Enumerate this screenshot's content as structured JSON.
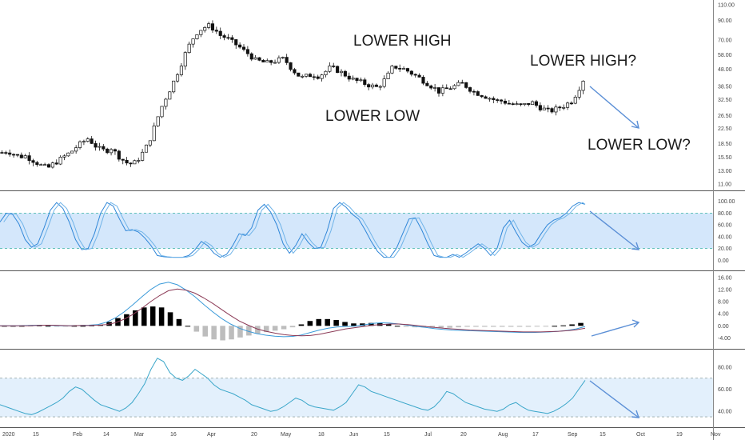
{
  "colors": {
    "accent": "#5b8fd6",
    "band": "#d4e7fb",
    "bandLine": "#3cb6a5",
    "candle": "#111111",
    "macdSignal": "#8b3a56",
    "histPos": "#000000",
    "histNeg": "#bdbdbd"
  },
  "chart_data": [
    {
      "type": "candlestick",
      "title": "",
      "yscale": "log",
      "ylim": [
        11.0,
        110.0
      ],
      "y_ticks": [
        "110.00",
        "90.00",
        "70.00",
        "58.00",
        "48.00",
        "38.50",
        "32.50",
        "26.50",
        "22.50",
        "18.50",
        "15.50",
        "13.00",
        "11.00"
      ],
      "x_ticks": [
        "2020",
        "15",
        "Feb",
        "14",
        "Mar",
        "16",
        "Apr",
        "20",
        "May",
        "18",
        "Jun",
        "15",
        "Jul",
        "20",
        "Aug",
        "17",
        "Sep",
        "15",
        "Oct",
        "19",
        "Nov"
      ],
      "close_path": [
        16.5,
        16.8,
        16.2,
        15.6,
        15.8,
        15.2,
        14.5,
        13.8,
        13.5,
        14.3,
        15.0,
        15.8,
        16.6,
        17.8,
        18.8,
        19.8,
        18.2,
        17.2,
        16.8,
        17.5,
        16.0,
        15.0,
        14.2,
        14.4,
        15.6,
        17.5,
        20.5,
        25.5,
        31.0,
        36.0,
        42.0,
        50.0,
        60.0,
        70.0,
        78.0,
        82.0,
        84.0,
        80.0,
        74.0,
        72.0,
        68.0,
        65.0,
        61.0,
        58.0,
        54.0,
        53.0,
        52.0,
        53.0,
        54.0,
        55.0,
        50.0,
        46.0,
        43.0,
        44.0,
        45.0,
        44.0,
        46.0,
        49.0,
        48.0,
        46.0,
        44.0,
        42.0,
        41.0,
        40.0,
        39.0,
        38.0,
        40.0,
        44.0,
        50.0,
        49.0,
        48.0,
        46.0,
        44.0,
        42.0,
        40.0,
        38.0,
        36.0,
        37.0,
        38.0,
        39.0,
        40.0,
        38.0,
        36.0,
        35.0,
        34.0,
        33.0,
        32.0,
        32.0,
        31.0,
        30.5,
        30.0,
        30.5,
        31.5,
        30.0,
        29.0,
        28.0,
        28.5,
        29.5,
        30.5,
        32.0,
        36.0,
        42.0
      ],
      "annotations": [
        "LOWER HIGH",
        "LOWER LOW",
        "LOWER HIGH?",
        "LOWER LOW?"
      ]
    },
    {
      "type": "line",
      "y_ticks": [
        "100.00",
        "80.00",
        "60.00",
        "40.00",
        "20.00",
        "0.00"
      ],
      "ylim": [
        -5,
        105
      ],
      "band": [
        20,
        80
      ],
      "k_values": [
        65,
        80,
        78,
        62,
        35,
        22,
        28,
        55,
        85,
        98,
        88,
        65,
        35,
        18,
        20,
        45,
        80,
        98,
        92,
        70,
        50,
        52,
        48,
        38,
        25,
        8,
        6,
        5,
        5,
        5,
        8,
        18,
        32,
        25,
        12,
        5,
        10,
        25,
        45,
        42,
        55,
        85,
        95,
        82,
        60,
        28,
        12,
        25,
        45,
        30,
        20,
        22,
        50,
        88,
        98,
        90,
        78,
        70,
        52,
        32,
        15,
        5,
        5,
        20,
        45,
        70,
        72,
        52,
        28,
        8,
        5,
        5,
        10,
        5,
        12,
        20,
        28,
        20,
        8,
        20,
        55,
        68,
        48,
        30,
        22,
        28,
        45,
        60,
        68,
        72,
        80,
        92,
        98,
        95
      ]
    },
    {
      "type": "line",
      "y_ticks": [
        "16.00",
        "12.00",
        "8.00",
        "4.00",
        "0.00",
        "-4.00"
      ],
      "ylim": [
        -6,
        17
      ],
      "macd": [
        0,
        0,
        0,
        0.1,
        0.2,
        0.2,
        0.1,
        0,
        0,
        0.1,
        0.2,
        0.4,
        1.2,
        2.6,
        4.6,
        7.0,
        9.6,
        12.0,
        13.8,
        14.4,
        13.6,
        11.8,
        9.6,
        7.0,
        4.6,
        2.4,
        0.6,
        -0.8,
        -1.8,
        -2.6,
        -3.1,
        -3.4,
        -3.6,
        -3.5,
        -3.0,
        -2.2,
        -1.4,
        -0.8,
        -0.4,
        -0.2,
        -0.1,
        0.3,
        0.8,
        1.0,
        0.9,
        0.6,
        0.2,
        -0.2,
        -0.5,
        -0.9,
        -1.2,
        -1.4,
        -1.5,
        -1.6,
        -1.7,
        -1.8,
        -1.9,
        -2.0,
        -2.1,
        -2.2,
        -2.2,
        -2.1,
        -2.0,
        -1.8,
        -1.5,
        -1.0,
        -0.2
      ],
      "signal": [
        0,
        0,
        0,
        0,
        0.1,
        0.2,
        0.2,
        0.1,
        0,
        0.1,
        0.1,
        0.2,
        0.4,
        1.0,
        2.2,
        3.8,
        5.8,
        8.0,
        10.0,
        11.6,
        12.2,
        11.8,
        10.8,
        9.2,
        7.4,
        5.4,
        3.4,
        1.6,
        0.2,
        -1.0,
        -1.8,
        -2.4,
        -2.9,
        -3.2,
        -3.3,
        -3.2,
        -2.8,
        -2.2,
        -1.6,
        -1.0,
        -0.6,
        -0.2,
        0.2,
        0.4,
        0.6,
        0.6,
        0.4,
        0.1,
        -0.2,
        -0.5,
        -0.8,
        -1.0,
        -1.2,
        -1.4,
        -1.5,
        -1.6,
        -1.7,
        -1.8,
        -1.9,
        -2.0,
        -2.0,
        -2.0,
        -1.9,
        -1.8,
        -1.6,
        -1.3,
        -0.8
      ]
    },
    {
      "type": "line",
      "y_ticks": [
        "80.00",
        "60.00",
        "40.00"
      ],
      "ylim": [
        30,
        90
      ],
      "band": [
        35,
        70
      ],
      "values": [
        46,
        44,
        42,
        40,
        38,
        37,
        39,
        42,
        45,
        48,
        52,
        58,
        62,
        60,
        55,
        50,
        46,
        44,
        42,
        40,
        43,
        48,
        56,
        65,
        78,
        88,
        85,
        75,
        70,
        68,
        72,
        78,
        74,
        70,
        64,
        60,
        58,
        56,
        53,
        50,
        46,
        44,
        42,
        40,
        41,
        44,
        48,
        52,
        50,
        46,
        44,
        43,
        42,
        41,
        44,
        48,
        56,
        64,
        62,
        58,
        56,
        54,
        52,
        50,
        48,
        46,
        44,
        42,
        41,
        44,
        50,
        58,
        56,
        52,
        48,
        46,
        44,
        42,
        41,
        40,
        42,
        46,
        48,
        44,
        41,
        40,
        39,
        38,
        40,
        43,
        47,
        52,
        60,
        68
      ]
    }
  ]
}
